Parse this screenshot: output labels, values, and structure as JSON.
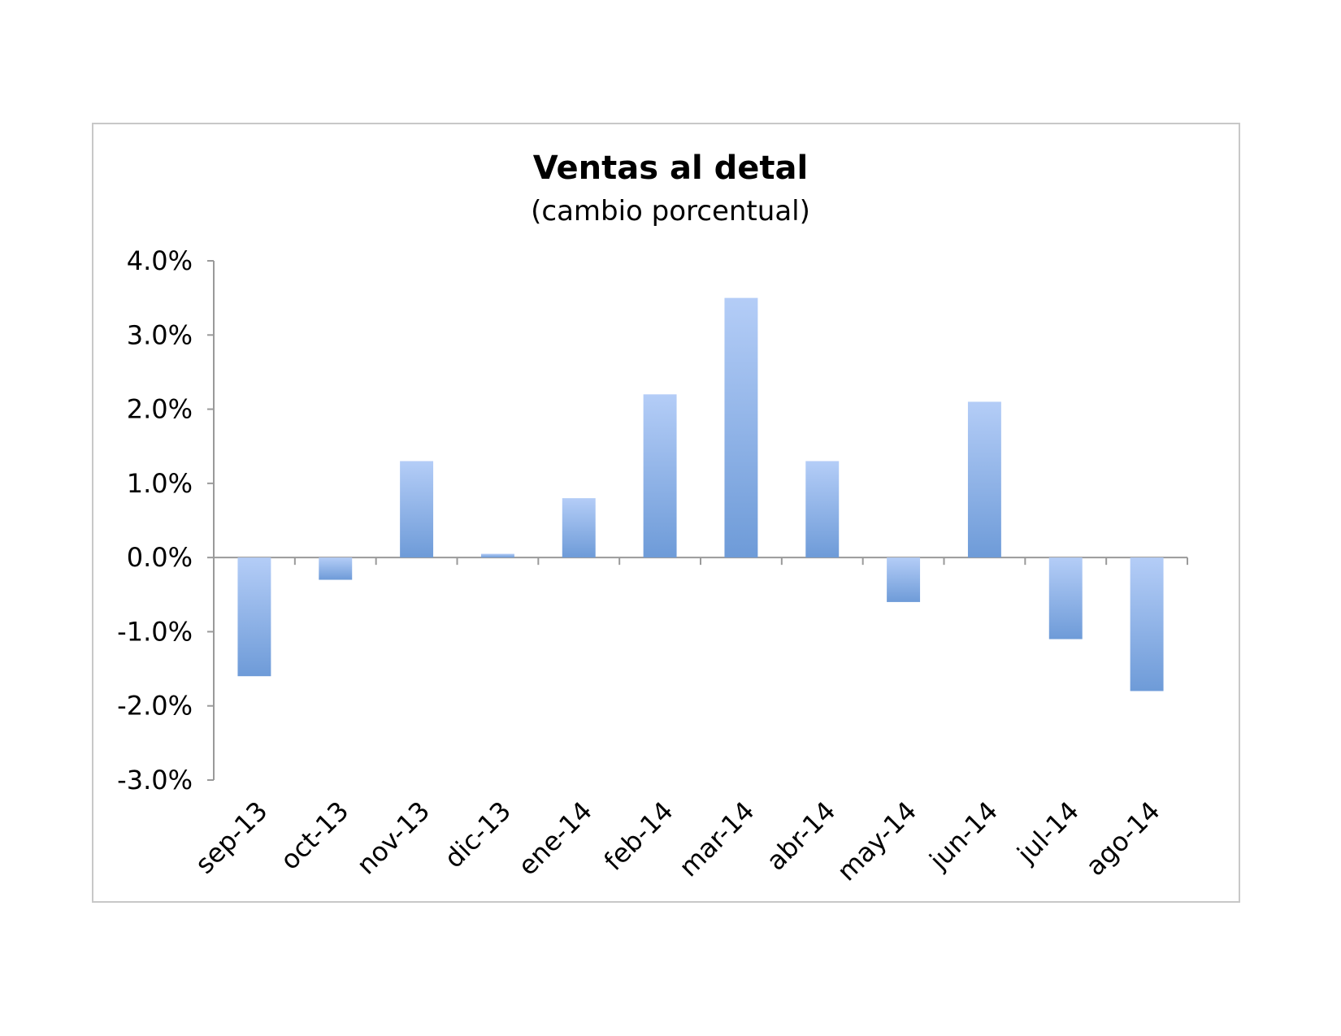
{
  "chart_data": {
    "type": "bar",
    "title": "Ventas al detal",
    "subtitle": "(cambio porcentual)",
    "xlabel": "",
    "ylabel": "",
    "categories": [
      "sep-13",
      "oct-13",
      "nov-13",
      "dic-13",
      "ene-14",
      "feb-14",
      "mar-14",
      "abr-14",
      "may-14",
      "jun-14",
      "jul-14",
      "ago-14"
    ],
    "values": [
      -1.6,
      -0.3,
      1.3,
      0.05,
      0.8,
      2.2,
      3.5,
      1.3,
      -0.6,
      2.1,
      -1.1,
      -1.8
    ],
    "ylim": [
      -3.0,
      4.0
    ],
    "yticks": [
      4.0,
      3.0,
      2.0,
      1.0,
      0.0,
      -1.0,
      -2.0,
      -3.0
    ],
    "ytick_labels": [
      "4.0%",
      "3.0%",
      "2.0%",
      "1.0%",
      "0.0%",
      "-1.0%",
      "-2.0%",
      "-3.0%"
    ],
    "grid": false,
    "legend": "none",
    "bar_color_top": "#b4cdf7",
    "bar_color_bottom": "#6e9bd8"
  }
}
